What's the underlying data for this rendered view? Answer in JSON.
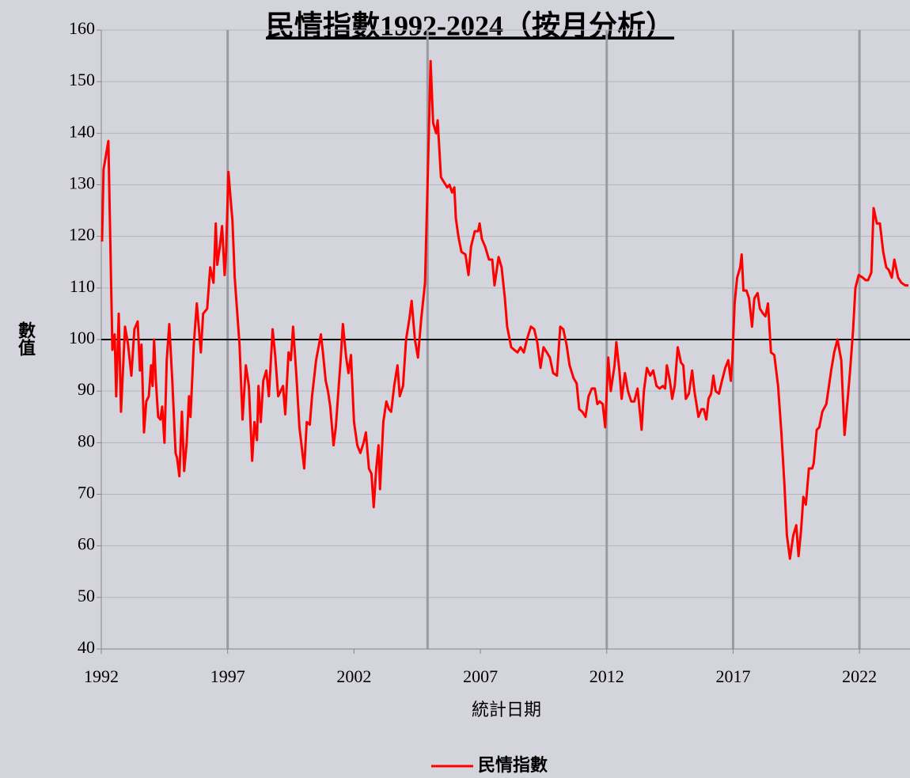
{
  "chart_data": {
    "type": "line",
    "title": "民情指數1992-2024（按月分析）",
    "xlabel": "統計日期",
    "ylabel": "數值",
    "xlim": [
      1992,
      2024
    ],
    "xticks": [
      1992,
      1997,
      2002,
      2007,
      2012,
      2017,
      2022
    ],
    "ylim": [
      40,
      160
    ],
    "yticks": [
      40,
      50,
      60,
      70,
      80,
      90,
      100,
      110,
      120,
      130,
      140,
      150,
      160
    ],
    "grid": true,
    "reference_line": 100,
    "vlines": [
      1997,
      2004.91,
      2012,
      2017,
      2022
    ],
    "legend": "bottom",
    "x": [
      1992.03,
      1992.09,
      1992.28,
      1992.44,
      1992.53,
      1992.59,
      1992.69,
      1992.78,
      1992.94,
      1993.06,
      1993.19,
      1993.31,
      1993.44,
      1993.53,
      1993.59,
      1993.69,
      1993.78,
      1993.88,
      1993.97,
      1994.03,
      1994.09,
      1994.16,
      1994.25,
      1994.34,
      1994.41,
      1994.5,
      1994.59,
      1994.69,
      1994.81,
      1994.94,
      1995,
      1995.09,
      1995.19,
      1995.28,
      1995.38,
      1995.47,
      1995.53,
      1995.66,
      1995.78,
      1995.94,
      1996.03,
      1996.19,
      1996.31,
      1996.44,
      1996.53,
      1996.59,
      1996.69,
      1996.78,
      1996.88,
      1996.94,
      1997.03,
      1997.19,
      1997.28,
      1997.47,
      1997.59,
      1997.72,
      1997.84,
      1997.97,
      1998.06,
      1998.16,
      1998.22,
      1998.31,
      1998.41,
      1998.53,
      1998.63,
      1998.78,
      1998.88,
      1999,
      1999.19,
      1999.28,
      1999.41,
      1999.5,
      1999.59,
      1999.72,
      1999.84,
      2000.03,
      2000.13,
      2000.25,
      2000.34,
      2000.5,
      2000.69,
      2000.78,
      2000.88,
      2000.97,
      2001.06,
      2001.19,
      2001.28,
      2001.47,
      2001.56,
      2001.69,
      2001.78,
      2001.88,
      2002,
      2002.13,
      2002.25,
      2002.38,
      2002.47,
      2002.59,
      2002.69,
      2002.78,
      2002.88,
      2002.97,
      2003.03,
      2003.16,
      2003.28,
      2003.38,
      2003.47,
      2003.59,
      2003.72,
      2003.81,
      2003.94,
      2004.06,
      2004.19,
      2004.28,
      2004.41,
      2004.53,
      2004.66,
      2004.81,
      2004.91,
      2005.03,
      2005.13,
      2005.25,
      2005.31,
      2005.44,
      2005.56,
      2005.69,
      2005.78,
      2005.88,
      2005.97,
      2006.03,
      2006.13,
      2006.25,
      2006.41,
      2006.53,
      2006.63,
      2006.78,
      2006.91,
      2006.97,
      2007.06,
      2007.19,
      2007.34,
      2007.47,
      2007.56,
      2007.72,
      2007.84,
      2007.97,
      2008.06,
      2008.22,
      2008.34,
      2008.47,
      2008.59,
      2008.72,
      2008.84,
      2009,
      2009.13,
      2009.25,
      2009.38,
      2009.5,
      2009.63,
      2009.75,
      2009.88,
      2010.03,
      2010.16,
      2010.28,
      2010.41,
      2010.53,
      2010.69,
      2010.81,
      2010.91,
      2011.03,
      2011.16,
      2011.28,
      2011.41,
      2011.53,
      2011.63,
      2011.72,
      2011.84,
      2011.94,
      2012.06,
      2012.16,
      2012.31,
      2012.38,
      2012.5,
      2012.59,
      2012.72,
      2012.84,
      2012.97,
      2013.09,
      2013.22,
      2013.38,
      2013.47,
      2013.59,
      2013.72,
      2013.84,
      2013.97,
      2014.09,
      2014.22,
      2014.31,
      2014.38,
      2014.5,
      2014.59,
      2014.69,
      2014.81,
      2014.94,
      2015.03,
      2015.13,
      2015.25,
      2015.38,
      2015.47,
      2015.63,
      2015.75,
      2015.84,
      2015.94,
      2016.03,
      2016.13,
      2016.22,
      2016.31,
      2016.44,
      2016.56,
      2016.69,
      2016.81,
      2016.91,
      2016.97,
      2017.06,
      2017.16,
      2017.28,
      2017.34,
      2017.41,
      2017.53,
      2017.63,
      2017.75,
      2017.84,
      2017.97,
      2018.06,
      2018.19,
      2018.28,
      2018.38,
      2018.5,
      2018.63,
      2018.78,
      2018.91,
      2019.03,
      2019.13,
      2019.25,
      2019.38,
      2019.5,
      2019.59,
      2019.69,
      2019.78,
      2019.88,
      2020,
      2020.13,
      2020.19,
      2020.31,
      2020.41,
      2020.53,
      2020.69,
      2020.88,
      2021,
      2021.13,
      2021.28,
      2021.41,
      2021.5,
      2021.63,
      2021.75,
      2021.84,
      2021.97,
      2022.13,
      2022.25,
      2022.34,
      2022.47,
      2022.56,
      2022.69,
      2022.81,
      2022.94,
      2023.06,
      2023.16,
      2023.28,
      2023.38,
      2023.53,
      2023.66,
      2023.81,
      2023.94
    ],
    "series": [
      {
        "name": "民情指數",
        "color": "#ff0000",
        "values": [
          119,
          133,
          138.5,
          98,
          101,
          89,
          105,
          86,
          102.5,
          99,
          93,
          102,
          103.5,
          94,
          99,
          82,
          88,
          89,
          95,
          91,
          100,
          92,
          85,
          84.5,
          87,
          80,
          96,
          103,
          92,
          78,
          77,
          73.5,
          86,
          74.5,
          80,
          89,
          85,
          99,
          107,
          97.5,
          105,
          106,
          114,
          111,
          122.5,
          114.5,
          118,
          122,
          112.5,
          117,
          132.5,
          123,
          112,
          99,
          84.5,
          95,
          91,
          76.5,
          84,
          80.5,
          91,
          84,
          92,
          94,
          89,
          102,
          97,
          89,
          91,
          85.5,
          97.5,
          96,
          102.5,
          93,
          83,
          75,
          84,
          83.5,
          89,
          96,
          101,
          97,
          92,
          90,
          87,
          79.5,
          83,
          96,
          103,
          96.5,
          93.5,
          97,
          84,
          79.5,
          78,
          80,
          82,
          75,
          74,
          67.5,
          75,
          79.5,
          71,
          84,
          88,
          86.5,
          86,
          91,
          95,
          89,
          91,
          100,
          104,
          107.5,
          100,
          96.5,
          104,
          111,
          130,
          154,
          142,
          140,
          142.5,
          131.5,
          130.5,
          129.5,
          130,
          128.5,
          129.5,
          123.5,
          120,
          117,
          116.5,
          112.5,
          118,
          121,
          121,
          122.5,
          119.5,
          118,
          115.5,
          115.5,
          110.5,
          116,
          114,
          108,
          102.5,
          98.5,
          98,
          97.5,
          98.5,
          97.5,
          100,
          102.5,
          102,
          99.5,
          94.5,
          98.5,
          97.5,
          96.5,
          93.5,
          93,
          102.5,
          102,
          99,
          95,
          92.5,
          91.5,
          86.5,
          86,
          85,
          89,
          90.5,
          90.5,
          87.5,
          88,
          87.5,
          83,
          96.5,
          90,
          95,
          99.5,
          94,
          88.5,
          93.5,
          90,
          88,
          88,
          90.5,
          82.5,
          90,
          94.5,
          93,
          94,
          91,
          90.5,
          91,
          90.5,
          95,
          92,
          88.5,
          91,
          98.5,
          95.5,
          95,
          88.5,
          89.5,
          94,
          90,
          85,
          86.5,
          86.5,
          84.5,
          88.5,
          89.5,
          93,
          90,
          89.5,
          92,
          94.5,
          96,
          92,
          96,
          107,
          112,
          114,
          116.5,
          109.5,
          109.5,
          108,
          102.5,
          108,
          109,
          106,
          105,
          104.5,
          107,
          97.5,
          97,
          91,
          82,
          72,
          62,
          57.5,
          62,
          64,
          58,
          63,
          69.5,
          68,
          75,
          75,
          76,
          82.5,
          83,
          86,
          87.5,
          94,
          97.5,
          100,
          96,
          81.5,
          86.5,
          94,
          102,
          110,
          112.5,
          112,
          111.5,
          111.5,
          113,
          125.5,
          122.5,
          122.5,
          117,
          114,
          113.5,
          112,
          115.5,
          112,
          111,
          110.5,
          110.5
        ]
      }
    ]
  }
}
